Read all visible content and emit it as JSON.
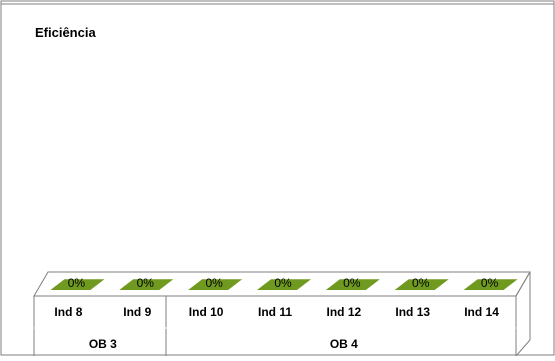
{
  "chart_data": {
    "type": "bar",
    "title": "Eficiência",
    "categories": [
      "Ind 8",
      "Ind 9",
      "Ind 10",
      "Ind 11",
      "Ind 12",
      "Ind 13",
      "Ind 14"
    ],
    "groups": [
      {
        "label": "OB 3",
        "categories": [
          "Ind 8",
          "Ind 9"
        ]
      },
      {
        "label": "OB 4",
        "categories": [
          "Ind 10",
          "Ind 11",
          "Ind 12",
          "Ind 13",
          "Ind 14"
        ]
      }
    ],
    "values": [
      0,
      0,
      0,
      0,
      0,
      0,
      0
    ],
    "data_labels": [
      "0%",
      "0%",
      "0%",
      "0%",
      "0%",
      "0%",
      "0%"
    ],
    "value_format": "percent",
    "three_d": true,
    "grid": false,
    "legend": "none",
    "colors": {
      "bar": "#6f9a1f",
      "bar_side": "#8cb83a",
      "frame": "#7f7f7f",
      "background": "#ffffff",
      "text": "#000000"
    }
  }
}
